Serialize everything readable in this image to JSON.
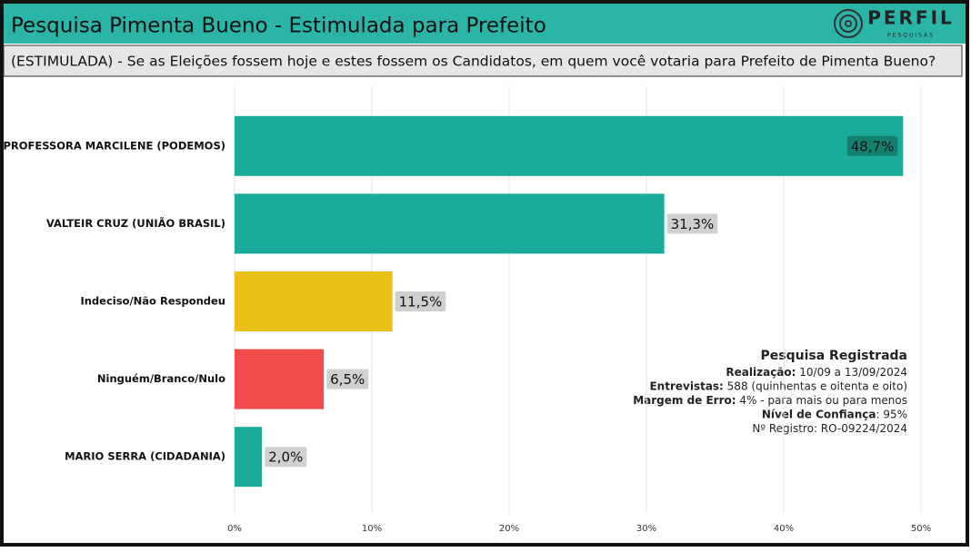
{
  "header": {
    "title": "Pesquisa Pimenta Bueno - Estimulada para Prefeito",
    "logo": "PERFIL",
    "logo_sub": "PESQUISAS",
    "subtitle": "(ESTIMULADA) - Se as Eleições fossem hoje e estes fossem os Candidatos, em quem você votaria para Prefeito de Pimenta Bueno?"
  },
  "chart_data": {
    "type": "hbar",
    "categories": [
      "PROFESSORA MARCILENE (PODEMOS)",
      "VALTEIR CRUZ (UNIÃO BRASIL)",
      "Indeciso/Não Respondeu",
      "Ninguém/Branco/Nulo",
      "MARIO SERRA (CIDADANIA)"
    ],
    "values": [
      48.7,
      31.3,
      11.5,
      6.5,
      2.0
    ],
    "value_labels": [
      "48,7%",
      "31,3%",
      "11,5%",
      "6,5%",
      "2,0%"
    ],
    "colors": [
      "#1aab9b",
      "#1aab9b",
      "#ebc017",
      "#f24b4b",
      "#1aab9b"
    ],
    "xlim": [
      0,
      50
    ],
    "xticks": [
      {
        "value": 0,
        "label": "0%"
      },
      {
        "value": 10,
        "label": "10%"
      },
      {
        "value": 20,
        "label": "20%"
      },
      {
        "value": 30,
        "label": "30%"
      },
      {
        "value": 40,
        "label": "40%"
      },
      {
        "value": 50,
        "label": "50%"
      }
    ],
    "grid": true
  },
  "note": {
    "title": "Pesquisa Registrada",
    "lines": [
      {
        "label": "Realização:",
        "text": " 10/09 a 13/09/2024"
      },
      {
        "label": "Entrevistas:",
        "text": " 588 (quinhentas e oitenta e oito)"
      },
      {
        "label": "Margem de Erro:",
        "text": " 4% - para mais ou para menos"
      },
      {
        "label": "Nível de Confiança",
        "text": ": 95%"
      },
      {
        "text": "Nº Registro: RO-09224/2024"
      }
    ]
  }
}
